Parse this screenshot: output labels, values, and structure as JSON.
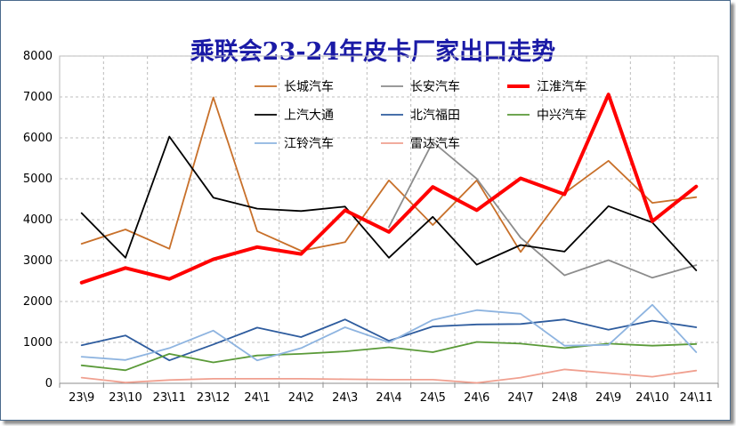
{
  "chart_data": {
    "type": "line",
    "title": "乘联会23-24年皮卡厂家出口走势",
    "categories": [
      "23\\9",
      "23\\10",
      "23\\11",
      "23\\12",
      "24\\1",
      "24\\2",
      "24\\3",
      "24\\4",
      "24\\5",
      "24\\6",
      "24\\7",
      "24\\8",
      "24\\9",
      "24\\10",
      "24\\11"
    ],
    "ylim": [
      0,
      8000
    ],
    "yticks": [
      0,
      1000,
      2000,
      3000,
      4000,
      5000,
      6000,
      7000,
      8000
    ],
    "grid": true,
    "legend_position": "top",
    "series": [
      {
        "name": "长城汽车",
        "color": "#c8702a",
        "width": 1.8,
        "values": [
          3410,
          3760,
          3290,
          6990,
          3720,
          3240,
          3450,
          4960,
          3870,
          4960,
          3210,
          4650,
          5440,
          4410,
          4550
        ]
      },
      {
        "name": "长安汽车",
        "color": "#8c8c8c",
        "width": 1.8,
        "values": [
          null,
          null,
          null,
          null,
          null,
          null,
          null,
          3820,
          5900,
          5000,
          3560,
          2640,
          3010,
          2580,
          2890
        ]
      },
      {
        "name": "江淮汽车",
        "color": "#ff0000",
        "width": 4,
        "values": [
          2460,
          2820,
          2550,
          3030,
          3330,
          3160,
          4230,
          3700,
          4800,
          4230,
          5010,
          4620,
          7060,
          3960,
          4810
        ]
      },
      {
        "name": "上汽大通",
        "color": "#000000",
        "width": 1.8,
        "values": [
          4160,
          3070,
          6030,
          4540,
          4270,
          4210,
          4320,
          3070,
          4070,
          2900,
          3380,
          3220,
          4330,
          3930,
          2760
        ]
      },
      {
        "name": "北汽福田",
        "color": "#2e5c9e",
        "width": 1.8,
        "values": [
          930,
          1170,
          560,
          950,
          1360,
          1130,
          1560,
          1040,
          1390,
          1440,
          1450,
          1560,
          1310,
          1530,
          1370
        ]
      },
      {
        "name": "中兴汽车",
        "color": "#5a9a38",
        "width": 1.8,
        "values": [
          440,
          320,
          720,
          510,
          680,
          720,
          780,
          880,
          760,
          1010,
          970,
          860,
          970,
          920,
          960
        ]
      },
      {
        "name": "江铃汽车",
        "color": "#8eb4e0",
        "width": 1.8,
        "values": [
          650,
          570,
          860,
          1290,
          560,
          860,
          1370,
          1000,
          1550,
          1790,
          1700,
          920,
          940,
          1920,
          760
        ]
      },
      {
        "name": "雷达汽车",
        "color": "#f0a090",
        "width": 1.8,
        "values": [
          140,
          20,
          80,
          110,
          110,
          110,
          100,
          90,
          90,
          10,
          140,
          340,
          250,
          160,
          310
        ]
      }
    ]
  }
}
